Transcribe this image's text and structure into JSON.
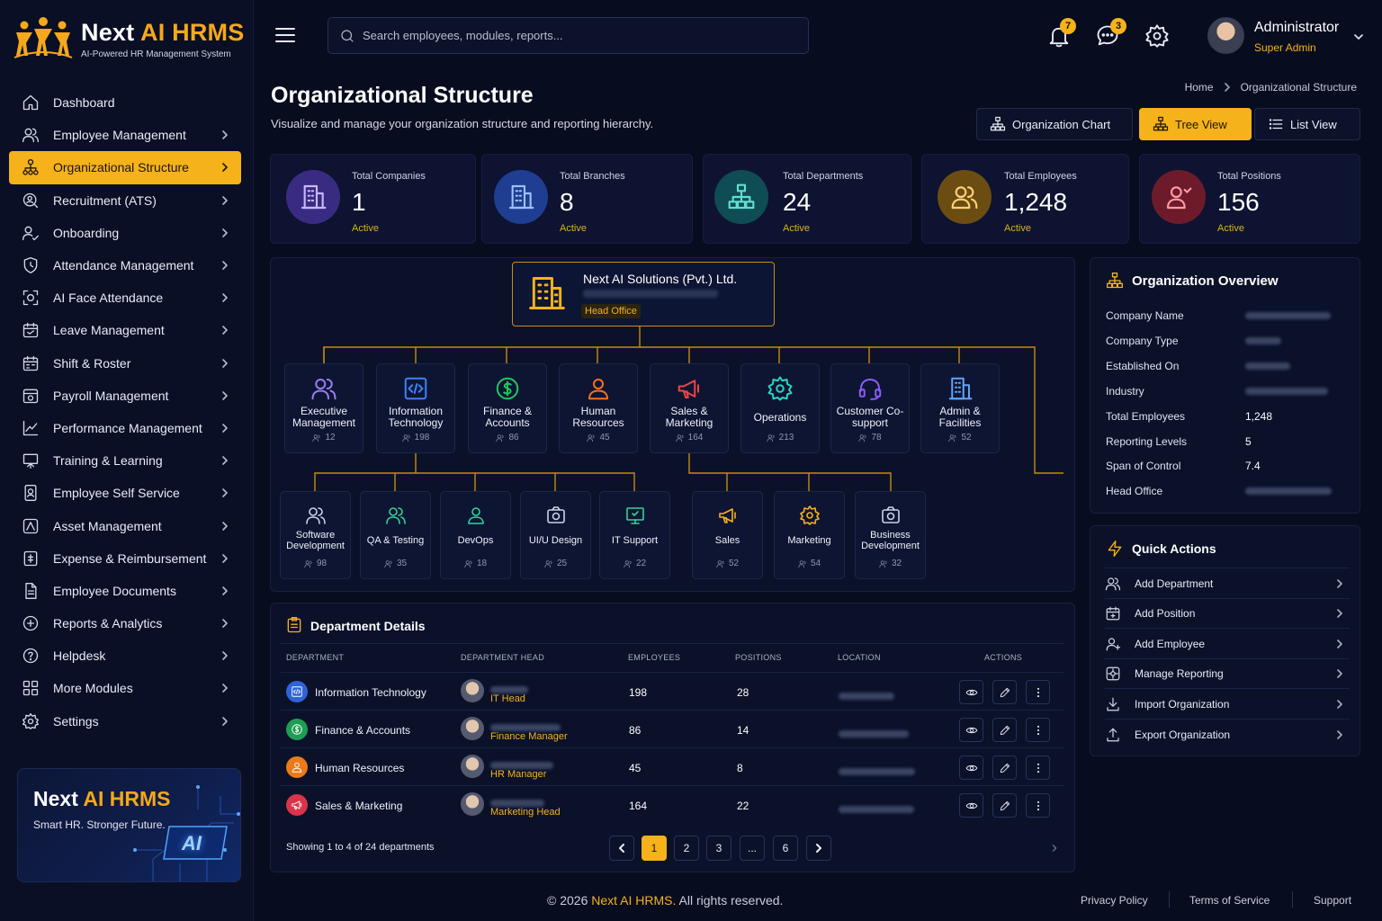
{
  "brand": {
    "name_white": "Next ",
    "name_accent": "AI HRMS",
    "tagline": "AI-Powered HR Management System"
  },
  "sidebar": {
    "items": [
      {
        "label": "Dashboard"
      },
      {
        "label": "Employee Management"
      },
      {
        "label": "Organizational Structure"
      },
      {
        "label": "Recruitment (ATS)"
      },
      {
        "label": "Onboarding"
      },
      {
        "label": "Attendance Management"
      },
      {
        "label": "AI Face Attendance"
      },
      {
        "label": "Leave Management"
      },
      {
        "label": "Shift & Roster"
      },
      {
        "label": "Payroll Management"
      },
      {
        "label": "Performance Management"
      },
      {
        "label": "Training & Learning"
      },
      {
        "label": "Employee Self Service"
      },
      {
        "label": "Asset Management"
      },
      {
        "label": "Expense & Reimbursement"
      },
      {
        "label": "Employee Documents"
      },
      {
        "label": "Reports & Analytics"
      },
      {
        "label": "Helpdesk"
      },
      {
        "label": "More Modules"
      },
      {
        "label": "Settings"
      }
    ],
    "active_index": 2,
    "promo": {
      "title_white": "Next ",
      "title_accent": "AI HRMS",
      "subtitle": "Smart HR. Stronger Future.",
      "badge": "AI"
    }
  },
  "topbar": {
    "search_placeholder": "Search employees, modules, reports...",
    "notifications_count": "7",
    "messages_count": "3",
    "user": {
      "name": "Administrator",
      "role": "Super Admin"
    }
  },
  "page": {
    "title": "Organizational Structure",
    "subtitle": "Visualize and manage your organization structure and reporting hierarchy.",
    "breadcrumb": [
      "Home",
      "Organizational Structure"
    ],
    "views": [
      {
        "label": "Organization Chart",
        "icon": "org-chart-icon"
      },
      {
        "label": "Tree View",
        "icon": "tree-icon"
      },
      {
        "label": "List View",
        "icon": "list-icon"
      }
    ],
    "active_view": 1
  },
  "stats": [
    {
      "label": "Total Companies",
      "value": "1",
      "status": "Active",
      "icon": "building-icon",
      "color": "#6b4fd8"
    },
    {
      "label": "Total Branches",
      "value": "8",
      "status": "Active",
      "icon": "building-icon",
      "color": "#2f63d8"
    },
    {
      "label": "Total Departments",
      "value": "24",
      "status": "Active",
      "icon": "hierarchy-icon",
      "color": "#1fa59a"
    },
    {
      "label": "Total Employees",
      "value": "1,248",
      "status": "Active",
      "icon": "users-icon",
      "color": "#c8921a"
    },
    {
      "label": "Total Positions",
      "value": "156",
      "status": "Active",
      "icon": "user-icon",
      "color": "#c23a4c"
    }
  ],
  "org_chart": {
    "root": {
      "name": "Next AI Solutions (Pvt.) Ltd.",
      "tag": "Head Office"
    },
    "departments": [
      {
        "name": "Executive Management",
        "count": "12",
        "icon": "users-icon",
        "color": "#9b7cf5"
      },
      {
        "name": "Information Technology",
        "count": "198",
        "icon": "code-icon",
        "color": "#3b82f6"
      },
      {
        "name": "Finance & Accounts",
        "count": "86",
        "icon": "dollar-icon",
        "color": "#22c55e"
      },
      {
        "name": "Human Resources",
        "count": "45",
        "icon": "user-icon",
        "color": "#f97316"
      },
      {
        "name": "Sales & Marketing",
        "count": "164",
        "icon": "megaphone-icon",
        "color": "#ef4444"
      },
      {
        "name": "Operations",
        "count": "213",
        "icon": "gear-icon",
        "color": "#2dd4bf"
      },
      {
        "name": "Customer Co-support",
        "count": "78",
        "icon": "headset-icon",
        "color": "#8b5cf6"
      },
      {
        "name": "Admin & Facilities",
        "count": "52",
        "icon": "building-icon",
        "color": "#60a5fa"
      }
    ],
    "sub_departments": [
      {
        "name": "Software Development",
        "count": "98",
        "icon": "users-icon",
        "color": "#cbd2e6"
      },
      {
        "name": "QA & Testing",
        "count": "35",
        "icon": "users-icon",
        "color": "#34d399"
      },
      {
        "name": "DevOps",
        "count": "18",
        "icon": "user-icon",
        "color": "#34d399"
      },
      {
        "name": "UI/U Design",
        "count": "25",
        "icon": "camera-icon",
        "color": "#cbd2e6"
      },
      {
        "name": "IT Support",
        "count": "22",
        "icon": "monitor-icon",
        "color": "#34d399"
      },
      {
        "name": "Sales",
        "count": "52",
        "icon": "megaphone-icon",
        "color": "#f5b21a"
      },
      {
        "name": "Marketing",
        "count": "54",
        "icon": "gear-icon",
        "color": "#f5b21a"
      },
      {
        "name": "Business Development",
        "count": "32",
        "icon": "camera-icon",
        "color": "#cbd2e6"
      }
    ]
  },
  "overview": {
    "title": "Organization Overview",
    "rows": [
      {
        "label": "Company Name",
        "value": ""
      },
      {
        "label": "Company Type",
        "value": ""
      },
      {
        "label": "Established On",
        "value": ""
      },
      {
        "label": "Industry",
        "value": ""
      },
      {
        "label": "Total Employees",
        "value": "1,248"
      },
      {
        "label": "Reporting Levels",
        "value": "5"
      },
      {
        "label": "Span of Control",
        "value": "7.4"
      },
      {
        "label": "Head Office",
        "value": ""
      }
    ]
  },
  "quick_actions": {
    "title": "Quick Actions",
    "items": [
      {
        "label": "Add Department",
        "icon": "users-icon"
      },
      {
        "label": "Add Position",
        "icon": "calendar-icon"
      },
      {
        "label": "Add Employee",
        "icon": "user-plus-icon"
      },
      {
        "label": "Manage Reporting",
        "icon": "settings-icon"
      },
      {
        "label": "Import Organization",
        "icon": "download-icon"
      },
      {
        "label": "Export Organization",
        "icon": "upload-icon"
      }
    ]
  },
  "table": {
    "title": "Department Details",
    "headers": [
      "DEPARTMENT",
      "DEPARTMENT HEAD",
      "EMPLOYEES",
      "POSITIONS",
      "LOCATION",
      "ACTIONS"
    ],
    "rows": [
      {
        "department": "Information Technology",
        "head_role": "IT Head",
        "employees": "198",
        "positions": "28",
        "icon": "code-icon",
        "color": "#2f63d8"
      },
      {
        "department": "Finance & Accounts",
        "head_role": "Finance Manager",
        "employees": "86",
        "positions": "14",
        "icon": "dollar-icon",
        "color": "#1f9d55"
      },
      {
        "department": "Human Resources",
        "head_role": "HR Manager",
        "employees": "45",
        "positions": "8",
        "icon": "user-icon",
        "color": "#ea7a1a"
      },
      {
        "department": "Sales & Marketing",
        "head_role": "Marketing Head",
        "employees": "164",
        "positions": "22",
        "icon": "megaphone-icon",
        "color": "#d9344a"
      }
    ],
    "showing": "Showing 1 to 4 of 24 departments",
    "pages": [
      "1",
      "2",
      "3",
      "...",
      "6"
    ],
    "current_page": "1"
  },
  "footer": {
    "copyright_pre": "© 2026 ",
    "copyright_brand": "Next AI HRMS.",
    "copyright_post": " All rights reserved.",
    "links": [
      "Privacy Policy",
      "Terms of Service",
      "Support"
    ]
  }
}
